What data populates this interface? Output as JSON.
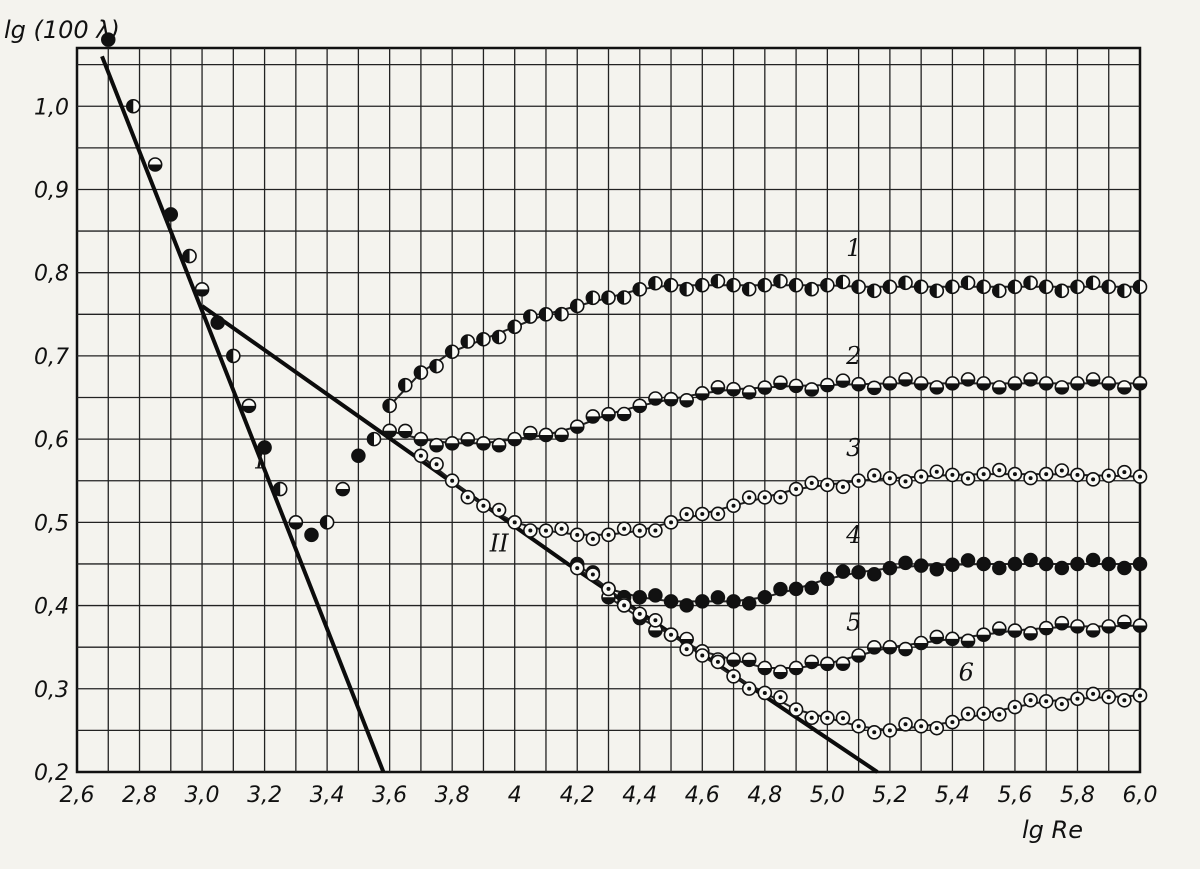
{
  "chart_data": {
    "type": "scatter",
    "title": "",
    "xlabel": "lg Re",
    "ylabel": "lg (100 λ)",
    "xlim": [
      2.6,
      6.0
    ],
    "ylim": [
      0.2,
      1.07
    ],
    "grid": true,
    "x_ticks": [
      2.6,
      2.8,
      3.0,
      3.2,
      3.4,
      3.6,
      3.8,
      4.0,
      4.2,
      4.4,
      4.6,
      4.8,
      5.0,
      5.2,
      5.4,
      5.6,
      5.8,
      6.0
    ],
    "x_tick_labels": [
      "2,6",
      "2,8",
      "3,0",
      "3,2",
      "3,4",
      "3,6",
      "3,8",
      "4",
      "4,2",
      "4,4",
      "4,6",
      "4,8",
      "5,0",
      "5,2",
      "5,4",
      "5,6",
      "5,8",
      "6,0"
    ],
    "y_ticks": [
      0.2,
      0.3,
      0.4,
      0.5,
      0.6,
      0.7,
      0.8,
      0.9,
      1.0
    ],
    "y_tick_labels": [
      "0,2",
      "0,3",
      "0,4",
      "0,5",
      "0,6",
      "0,7",
      "0,8",
      "0,9",
      "1,0"
    ],
    "reference_lines": [
      {
        "label": "I",
        "x": [
          2.68,
          3.58
        ],
        "y": [
          1.06,
          0.2
        ]
      },
      {
        "label": "II",
        "x": [
          3.0,
          4.17,
          5.16
        ],
        "y": [
          0.76,
          0.45,
          0.2
        ]
      }
    ],
    "annotations": [
      {
        "text": "I",
        "x": 3.17,
        "y": 0.565
      },
      {
        "text": "II",
        "x": 3.92,
        "y": 0.465
      }
    ],
    "series": [
      {
        "name": "1",
        "marker": "half-vertical",
        "label_at": [
          5.06,
          0.82
        ],
        "x": [
          3.6,
          3.7,
          3.8,
          3.9,
          4.0,
          4.1,
          4.2,
          4.3,
          4.4,
          4.5,
          4.6,
          4.7,
          4.8,
          4.9,
          5.0,
          5.1,
          5.2,
          5.3,
          5.4,
          5.5,
          5.6,
          5.7,
          5.8,
          5.9,
          6.0
        ],
        "y": [
          0.64,
          0.68,
          0.705,
          0.72,
          0.735,
          0.75,
          0.76,
          0.77,
          0.78,
          0.785,
          0.785,
          0.785,
          0.785,
          0.785,
          0.785,
          0.783,
          0.783,
          0.783,
          0.783,
          0.783,
          0.783,
          0.783,
          0.783,
          0.783,
          0.783
        ]
      },
      {
        "name": "2",
        "marker": "half-filled",
        "label_at": [
          5.06,
          0.69
        ],
        "x": [
          3.6,
          3.7,
          3.8,
          3.9,
          4.0,
          4.1,
          4.2,
          4.3,
          4.4,
          4.5,
          4.6,
          4.7,
          4.8,
          4.9,
          5.0,
          5.1,
          5.2,
          5.3,
          5.4,
          5.5,
          5.6,
          5.7,
          5.8,
          5.9,
          6.0
        ],
        "y": [
          0.61,
          0.6,
          0.595,
          0.595,
          0.6,
          0.605,
          0.615,
          0.63,
          0.64,
          0.648,
          0.655,
          0.66,
          0.662,
          0.664,
          0.665,
          0.666,
          0.667,
          0.667,
          0.667,
          0.667,
          0.667,
          0.667,
          0.667,
          0.667,
          0.667
        ]
      },
      {
        "name": "3",
        "marker": "dotted-circle",
        "label_at": [
          5.06,
          0.58
        ],
        "x": [
          3.7,
          3.8,
          3.9,
          4.0,
          4.1,
          4.2,
          4.3,
          4.4,
          4.5,
          4.6,
          4.7,
          4.8,
          4.9,
          5.0,
          5.1,
          5.2,
          5.3,
          5.4,
          5.5,
          5.6,
          5.7,
          5.8,
          5.9,
          6.0
        ],
        "y": [
          0.58,
          0.55,
          0.52,
          0.5,
          0.49,
          0.485,
          0.485,
          0.49,
          0.5,
          0.51,
          0.52,
          0.53,
          0.54,
          0.545,
          0.55,
          0.553,
          0.555,
          0.557,
          0.558,
          0.558,
          0.558,
          0.557,
          0.556,
          0.555
        ]
      },
      {
        "name": "4",
        "marker": "filled",
        "label_at": [
          5.06,
          0.475
        ],
        "x": [
          4.2,
          4.3,
          4.4,
          4.5,
          4.6,
          4.7,
          4.8,
          4.9,
          5.0,
          5.1,
          5.2,
          5.3,
          5.4,
          5.5,
          5.6,
          5.7,
          5.8,
          5.9,
          6.0
        ],
        "y": [
          0.45,
          0.42,
          0.41,
          0.405,
          0.405,
          0.405,
          0.41,
          0.42,
          0.432,
          0.44,
          0.445,
          0.448,
          0.449,
          0.45,
          0.45,
          0.45,
          0.45,
          0.45,
          0.45
        ]
      },
      {
        "name": "5",
        "marker": "half-horizontal",
        "label_at": [
          5.06,
          0.37
        ],
        "x": [
          4.3,
          4.4,
          4.5,
          4.6,
          4.7,
          4.8,
          4.9,
          5.0,
          5.1,
          5.2,
          5.3,
          5.4,
          5.5,
          5.6,
          5.7,
          5.8,
          5.9,
          6.0
        ],
        "y": [
          0.41,
          0.385,
          0.365,
          0.345,
          0.335,
          0.325,
          0.325,
          0.33,
          0.34,
          0.35,
          0.355,
          0.36,
          0.365,
          0.37,
          0.373,
          0.375,
          0.375,
          0.376
        ]
      },
      {
        "name": "6",
        "marker": "dotted-circle",
        "label_at": [
          5.42,
          0.31
        ],
        "x": [
          4.2,
          4.3,
          4.4,
          4.5,
          4.6,
          4.7,
          4.8,
          4.9,
          5.0,
          5.1,
          5.2,
          5.3,
          5.4,
          5.5,
          5.6,
          5.7,
          5.8,
          5.9,
          6.0
        ],
        "y": [
          0.445,
          0.42,
          0.39,
          0.365,
          0.34,
          0.315,
          0.295,
          0.275,
          0.265,
          0.255,
          0.25,
          0.255,
          0.26,
          0.27,
          0.278,
          0.285,
          0.288,
          0.29,
          0.292
        ]
      },
      {
        "name": "",
        "marker": "mixed",
        "x": [
          2.7,
          2.78,
          2.85,
          2.9,
          2.96,
          3.0,
          3.05,
          3.1,
          3.15,
          3.2,
          3.25,
          3.3,
          3.35,
          3.4,
          3.45,
          3.5,
          3.55
        ],
        "y": [
          1.08,
          1.0,
          0.93,
          0.87,
          0.82,
          0.78,
          0.74,
          0.7,
          0.64,
          0.59,
          0.54,
          0.5,
          0.485,
          0.5,
          0.54,
          0.58,
          0.6
        ]
      }
    ]
  }
}
